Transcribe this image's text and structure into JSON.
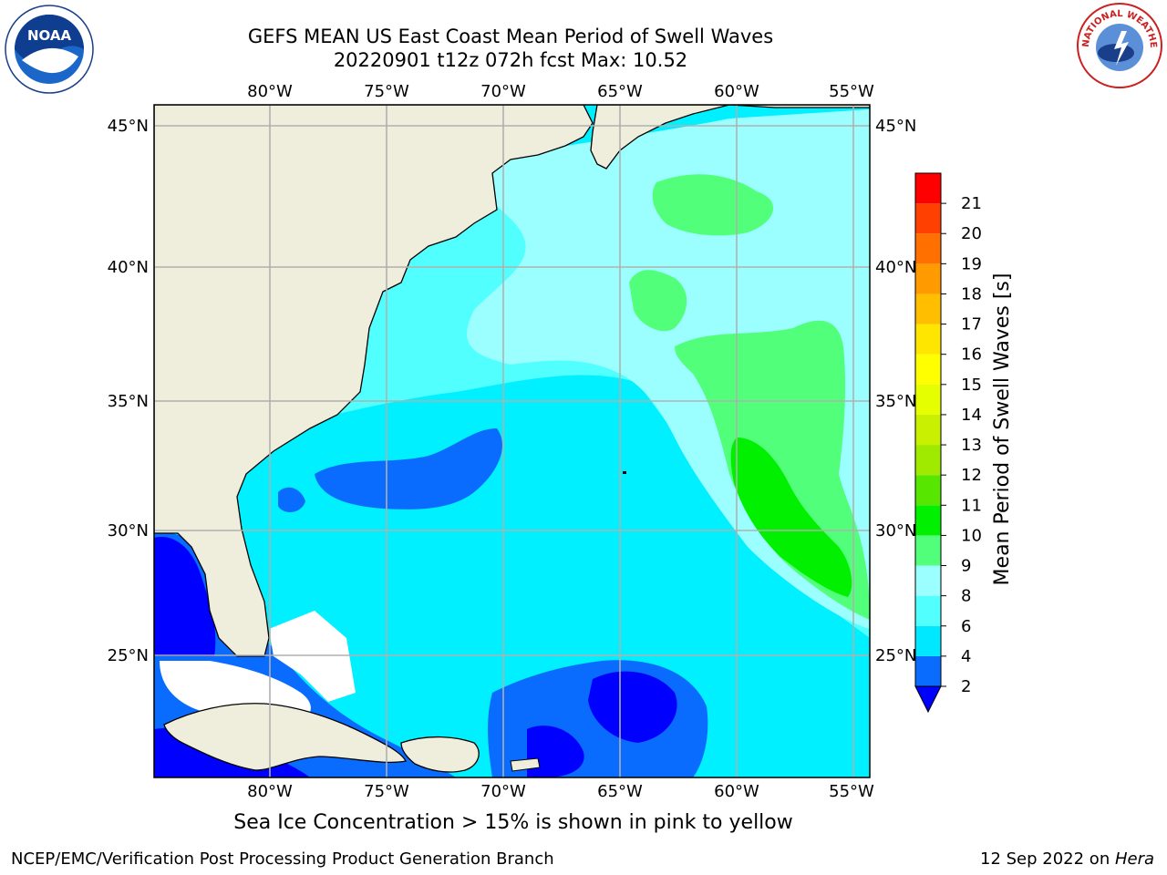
{
  "title": {
    "line1": "GEFS MEAN US East Coast Mean Period of Swell Waves",
    "line2": "20220901 t12z 072h fcst   Max: 10.52"
  },
  "logos": {
    "left": "NOAA",
    "right": "NATIONAL WEATHER SERVICE"
  },
  "map": {
    "lon_labels": [
      "80°W",
      "75°W",
      "70°W",
      "65°W",
      "60°W",
      "55°W"
    ],
    "lat_labels": [
      "45°N",
      "40°N",
      "35°N",
      "30°N",
      "25°N"
    ],
    "land_color": "#efeedd",
    "grid_color": "#b0b0b0"
  },
  "colorbar": {
    "label": "Mean Period of Swell Waves [s]",
    "ticks": [
      "2",
      "4",
      "6",
      "8",
      "9",
      "10",
      "11",
      "12",
      "13",
      "14",
      "15",
      "16",
      "17",
      "18",
      "19",
      "20",
      "21"
    ],
    "colors": [
      "#0a6cff",
      "#00e8ff",
      "#52ffff",
      "#9cffff",
      "#52ff7a",
      "#00f000",
      "#56e600",
      "#a0ea00",
      "#c8f000",
      "#e6ff00",
      "#ffff00",
      "#ffe600",
      "#ffbf00",
      "#ff9a00",
      "#ff7000",
      "#ff4000",
      "#ff0000"
    ],
    "under_color": "#0000ff"
  },
  "footer": {
    "note": "Sea Ice Concentration > 15% is shown in pink to yellow",
    "credit": "NCEP/EMC/Verification Post Processing Product Generation Branch",
    "date": "12 Sep 2022 on ",
    "machine": "Hera"
  }
}
